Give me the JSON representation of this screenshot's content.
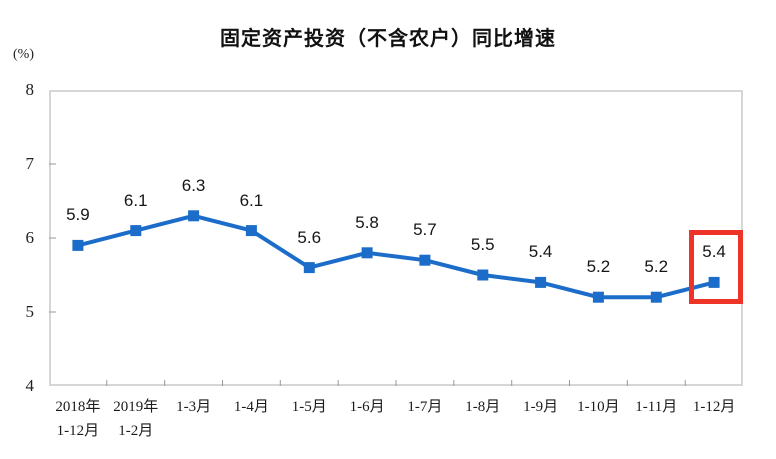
{
  "chart": {
    "title": "固定资产投资（不含农户）同比增速",
    "unit_label": "(%)"
  },
  "chart_data": {
    "type": "line",
    "title": "固定资产投资（不含农户）同比增速",
    "ylabel": "(%)",
    "xlabel": "",
    "categories": [
      "2018年 1-12月",
      "2019年 1-2月",
      "1-3月",
      "1-4月",
      "1-5月",
      "1-6月",
      "1-7月",
      "1-8月",
      "1-9月",
      "1-10月",
      "1-11月",
      "1-12月"
    ],
    "x_tick_labels": [
      {
        "line1": "2018年",
        "line2": "1-12月"
      },
      {
        "line1": "2019年",
        "line2": "1-2月"
      },
      {
        "line1": "1-3月",
        "line2": ""
      },
      {
        "line1": "1-4月",
        "line2": ""
      },
      {
        "line1": "1-5月",
        "line2": ""
      },
      {
        "line1": "1-6月",
        "line2": ""
      },
      {
        "line1": "1-7月",
        "line2": ""
      },
      {
        "line1": "1-8月",
        "line2": ""
      },
      {
        "line1": "1-9月",
        "line2": ""
      },
      {
        "line1": "1-10月",
        "line2": ""
      },
      {
        "line1": "1-11月",
        "line2": ""
      },
      {
        "line1": "1-12月",
        "line2": ""
      }
    ],
    "values": [
      5.9,
      6.1,
      6.3,
      6.1,
      5.6,
      5.8,
      5.7,
      5.5,
      5.4,
      5.2,
      5.2,
      5.4
    ],
    "data_labels": [
      "5.9",
      "6.1",
      "6.3",
      "6.1",
      "5.6",
      "5.8",
      "5.7",
      "5.5",
      "5.4",
      "5.2",
      "5.2",
      "5.4"
    ],
    "ylim": [
      4,
      8
    ],
    "yticks": [
      8,
      7,
      6,
      5,
      4
    ],
    "grid": false,
    "legend": "none",
    "marker": "square",
    "line_color": "#1c6dc9",
    "axis_color": "#d6d6d6",
    "tick_color": "#999999",
    "highlight": {
      "index": 11,
      "color": "#ee3426"
    }
  }
}
